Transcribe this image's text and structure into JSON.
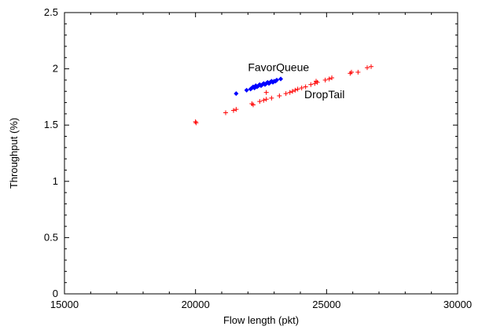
{
  "chart_data": {
    "type": "scatter",
    "title": "",
    "xlabel": "Flow length (pkt)",
    "ylabel": "Throughput (%)",
    "xlim": [
      15000,
      30000
    ],
    "ylim": [
      0,
      2.5
    ],
    "xticks": [
      15000,
      20000,
      25000,
      30000
    ],
    "yticks": [
      0,
      0.5,
      1,
      1.5,
      2,
      2.5
    ],
    "xtick_labels": [
      "15000",
      "20000",
      "25000",
      "30000"
    ],
    "ytick_labels": [
      "0",
      "0.5",
      "1",
      "1.5",
      "2",
      "2.5"
    ],
    "grid": false,
    "legend": "none",
    "annotations": [
      {
        "text": "FavorQueue",
        "x": 22000,
        "y": 1.98
      },
      {
        "text": "DropTail",
        "x": 24150,
        "y": 1.74
      }
    ],
    "series": [
      {
        "name": "FavorQueue",
        "color": "#0000ff",
        "marker": "diamond",
        "points": [
          [
            21550,
            1.78
          ],
          [
            21950,
            1.81
          ],
          [
            22100,
            1.82
          ],
          [
            22150,
            1.83
          ],
          [
            22200,
            1.84
          ],
          [
            22250,
            1.83
          ],
          [
            22300,
            1.85
          ],
          [
            22350,
            1.84
          ],
          [
            22400,
            1.85
          ],
          [
            22450,
            1.86
          ],
          [
            22500,
            1.85
          ],
          [
            22550,
            1.86
          ],
          [
            22600,
            1.87
          ],
          [
            22650,
            1.86
          ],
          [
            22700,
            1.87
          ],
          [
            22750,
            1.88
          ],
          [
            22800,
            1.87
          ],
          [
            22850,
            1.88
          ],
          [
            22900,
            1.89
          ],
          [
            22950,
            1.88
          ],
          [
            23000,
            1.89
          ],
          [
            23050,
            1.89
          ],
          [
            23100,
            1.9
          ],
          [
            23250,
            1.91
          ]
        ]
      },
      {
        "name": "DropTail",
        "color": "#ff0000",
        "marker": "plus",
        "points": [
          [
            20000,
            1.53
          ],
          [
            20020,
            1.52
          ],
          [
            21150,
            1.61
          ],
          [
            21450,
            1.63
          ],
          [
            21550,
            1.64
          ],
          [
            22150,
            1.69
          ],
          [
            22200,
            1.68
          ],
          [
            22450,
            1.71
          ],
          [
            22600,
            1.72
          ],
          [
            22700,
            1.73
          ],
          [
            22700,
            1.79
          ],
          [
            22900,
            1.74
          ],
          [
            23200,
            1.76
          ],
          [
            23450,
            1.78
          ],
          [
            23600,
            1.79
          ],
          [
            23700,
            1.8
          ],
          [
            23800,
            1.81
          ],
          [
            23900,
            1.82
          ],
          [
            24050,
            1.83
          ],
          [
            24200,
            1.84
          ],
          [
            24400,
            1.86
          ],
          [
            24550,
            1.87
          ],
          [
            24600,
            1.89
          ],
          [
            24650,
            1.88
          ],
          [
            24950,
            1.9
          ],
          [
            25100,
            1.91
          ],
          [
            25200,
            1.92
          ],
          [
            25900,
            1.96
          ],
          [
            25950,
            1.97
          ],
          [
            26200,
            1.97
          ],
          [
            26550,
            2.01
          ],
          [
            26700,
            2.02
          ]
        ]
      }
    ]
  }
}
